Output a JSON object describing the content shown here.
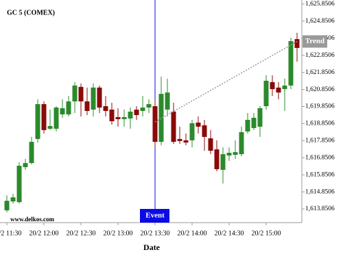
{
  "chart_data": {
    "type": "candlestick",
    "title": "GC 5 (COMEX)",
    "watermark": "www.delkos.com",
    "x_label": "Date",
    "categories": [
      "20/2 11:30",
      null,
      null,
      null,
      null,
      null,
      "20/2 12:00",
      null,
      null,
      null,
      null,
      null,
      "20/2 12:30",
      null,
      null,
      null,
      null,
      null,
      "20/2 13:00",
      null,
      null,
      null,
      null,
      null,
      "20/2 13:30",
      null,
      null,
      null,
      null,
      null,
      "20/2 14:00",
      null,
      null,
      null,
      null,
      null,
      "20/2 14:30",
      null,
      null,
      null,
      null,
      null,
      "20/2 15:00",
      null,
      null,
      null,
      null,
      null
    ],
    "open": [
      1613.77,
      1614.29,
      1614.25,
      1616.3,
      1616.54,
      1617.95,
      1619.99,
      1618.55,
      1618.55,
      1619.39,
      1619.39,
      1620.15,
      1621.0,
      1620.15,
      1619.67,
      1620.96,
      1619.87,
      1619.67,
      1619.23,
      1619.11,
      1619.15,
      1619.67,
      1619.59,
      1619.79,
      1619.87,
      1617.78,
      1619.67,
      1619.55,
      1617.95,
      1617.87,
      1617.87,
      1618.91,
      1618.75,
      1617.99,
      1617.34,
      1616.14,
      1616.98,
      1617.02,
      1617.06,
      1618.39,
      1618.59,
      1618.67,
      1619.87,
      1621.28,
      1620.96,
      1620.87,
      1621.08,
      1623.8
    ],
    "high": [
      1614.65,
      1614.74,
      1616.58,
      1616.78,
      1618.07,
      1620.27,
      1620.15,
      1619.67,
      1619.87,
      1620.27,
      1620.47,
      1621.28,
      1621.2,
      1620.96,
      1621.2,
      1621.08,
      1620.47,
      1620.07,
      1619.75,
      1619.67,
      1619.79,
      1619.87,
      1620.47,
      1620.27,
      1620.27,
      1621.6,
      1621.48,
      1620.07,
      1618.67,
      1618.27,
      1619.07,
      1619.27,
      1619.07,
      1618.47,
      1617.87,
      1617.46,
      1617.46,
      1617.87,
      1618.67,
      1619.47,
      1619.47,
      1619.87,
      1621.68,
      1621.68,
      1621.28,
      1621.48,
      1623.88,
      1624.17
    ],
    "low": [
      1613.65,
      1614.17,
      1614.17,
      1616.14,
      1616.46,
      1617.74,
      1618.27,
      1618.47,
      1618.39,
      1619.19,
      1619.27,
      1619.47,
      1619.27,
      1619.35,
      1619.27,
      1619.47,
      1619.27,
      1618.79,
      1618.67,
      1618.67,
      1618.55,
      1619.07,
      1619.27,
      1619.47,
      1617.46,
      1617.58,
      1619.27,
      1617.66,
      1617.66,
      1617.58,
      1617.46,
      1618.27,
      1617.26,
      1617.06,
      1616.06,
      1615.34,
      1616.66,
      1616.78,
      1616.94,
      1618.27,
      1618.47,
      1618.07,
      1619.67,
      1620.47,
      1620.27,
      1619.59,
      1620.87,
      1622.48
    ],
    "close": [
      1614.33,
      1614.53,
      1616.38,
      1616.54,
      1617.78,
      1619.99,
      1618.47,
      1618.71,
      1619.79,
      1619.75,
      1620.15,
      1621.08,
      1620.15,
      1619.59,
      1620.96,
      1619.79,
      1619.59,
      1618.99,
      1619.11,
      1619.23,
      1619.55,
      1619.35,
      1619.79,
      1619.99,
      1617.78,
      1620.59,
      1620.67,
      1617.78,
      1617.83,
      1617.74,
      1618.87,
      1618.67,
      1618.07,
      1617.26,
      1616.18,
      1617.06,
      1617.14,
      1617.18,
      1618.35,
      1619.07,
      1619.19,
      1619.75,
      1621.36,
      1620.87,
      1620.67,
      1621.08,
      1623.68,
      1623.28
    ],
    "up_color": "#2b8a2b",
    "down_color": "#8b0a0a",
    "ylim": [
      1613.05,
      1626.09
    ],
    "yticks": [
      {
        "value": 1625.8506,
        "label": "1,625.8506"
      },
      {
        "value": 1624.8506,
        "label": "1,624.8506"
      },
      {
        "value": 1623.8506,
        "label": "1,623.8506"
      },
      {
        "value": 1622.8506,
        "label": "1,622.8506"
      },
      {
        "value": 1621.8506,
        "label": "1,621.8506"
      },
      {
        "value": 1620.8506,
        "label": "1,620.8506"
      },
      {
        "value": 1619.8506,
        "label": "1,619.8506"
      },
      {
        "value": 1618.8506,
        "label": "1,618.8506"
      },
      {
        "value": 1617.8506,
        "label": "1,617.8506"
      },
      {
        "value": 1616.8506,
        "label": "1,616.8506"
      },
      {
        "value": 1615.8506,
        "label": "1,615.8506"
      },
      {
        "value": 1614.8506,
        "label": "1,614.8506"
      },
      {
        "value": 1613.8506,
        "label": "1,613.8506"
      }
    ],
    "event": {
      "x": "20/2 13:30",
      "label": "Event",
      "color": "#0a0ae6"
    },
    "trend": {
      "name": "Trend",
      "color": "#999999",
      "values": [
        null,
        null,
        null,
        null,
        null,
        null,
        null,
        null,
        null,
        null,
        null,
        null,
        null,
        null,
        null,
        null,
        null,
        null,
        null,
        null,
        null,
        null,
        null,
        null,
        1618.95,
        null,
        null,
        null,
        null,
        null,
        null,
        null,
        null,
        null,
        null,
        null,
        null,
        null,
        null,
        null,
        null,
        null,
        null,
        null,
        null,
        null,
        null,
        1623.66
      ]
    }
  }
}
